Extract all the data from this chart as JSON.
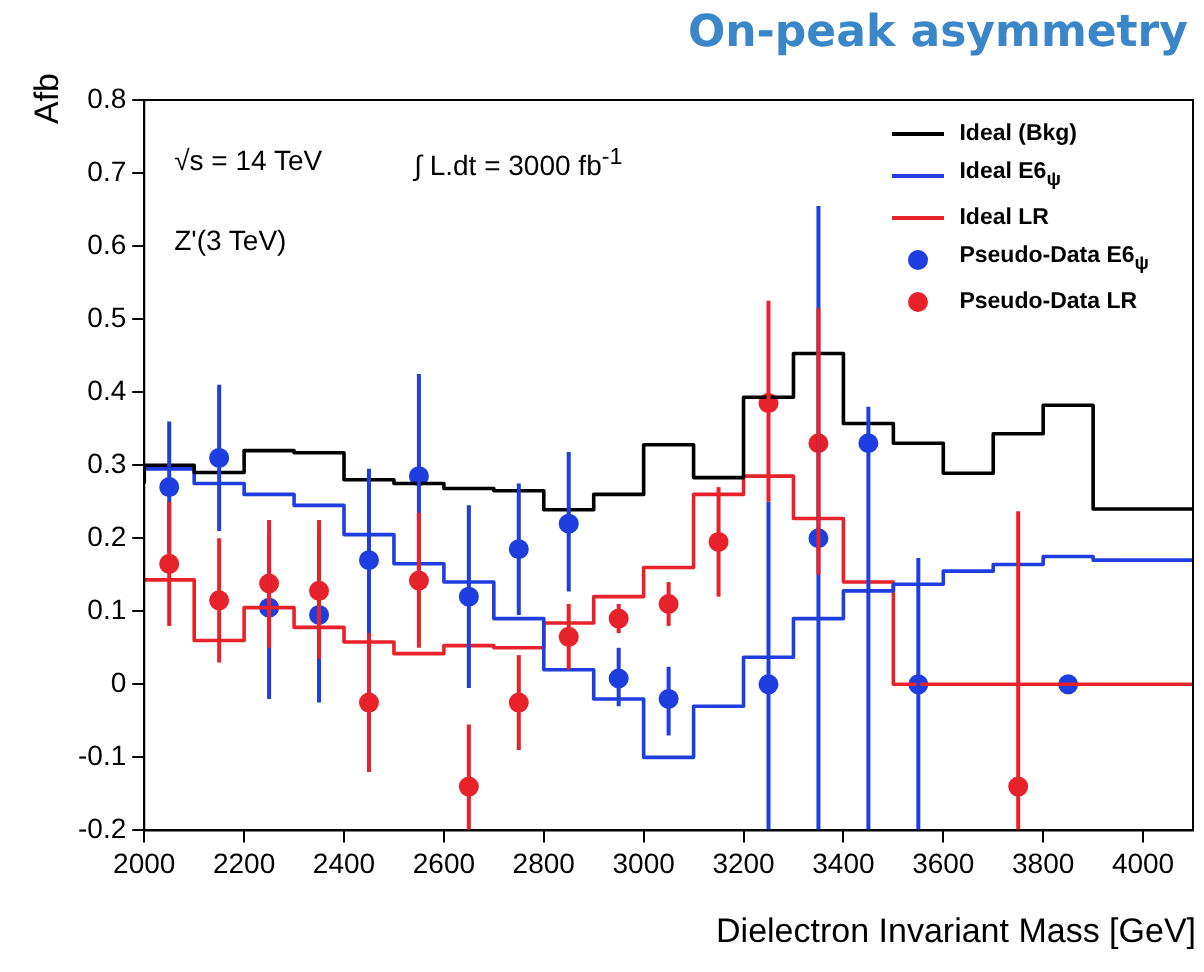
{
  "chart_data": {
    "type": "step",
    "title": "On-peak asymmetry",
    "xlabel": "Dielectron Invariant Mass [GeV]",
    "ylabel": "Afb",
    "annotations": [
      "√s = 14 TeV",
      "∫ L.dt = 3000 fb$^{-1}$",
      "Z'(3 TeV)"
    ],
    "xlim": [
      2000,
      4100
    ],
    "xticks": [
      2000,
      2200,
      2400,
      2600,
      2800,
      3000,
      3200,
      3400,
      3600,
      3800,
      4000
    ],
    "ylim": [
      -0.2,
      0.8
    ],
    "yticks": [
      -0.2,
      -0.1,
      0,
      0.1,
      0.2,
      0.3,
      0.4,
      0.5,
      0.6,
      0.7,
      0.8
    ],
    "grid": false,
    "legend": "top right",
    "series": [
      {
        "name": "Ideal (Bkg)",
        "color": "#000000",
        "x": [
          2000,
          2100,
          2200,
          2300,
          2400,
          2500,
          2600,
          2700,
          2800,
          2900,
          3000,
          3100,
          3200,
          3300,
          3400,
          3500,
          3600,
          3700,
          3800,
          3900,
          4000,
          4100
        ],
        "values": [
          0.275,
          0.3,
          0.29,
          0.32,
          0.317,
          0.28,
          0.275,
          0.268,
          0.265,
          0.239,
          0.26,
          0.328,
          0.283,
          0.393,
          0.453,
          0.357,
          0.33,
          0.289,
          0.343,
          0.382,
          0.24,
          0.24
        ]
      },
      {
        "name": "Ideal E6$_{ψ}$",
        "color": "#1f3ee0",
        "x": [
          2000,
          2100,
          2200,
          2300,
          2400,
          2500,
          2600,
          2700,
          2800,
          2900,
          3000,
          3100,
          3200,
          3300,
          3400,
          3500,
          3600,
          3700,
          3800,
          3900,
          4000,
          4100
        ],
        "values": [
          0.295,
          0.295,
          0.275,
          0.26,
          0.245,
          0.205,
          0.165,
          0.14,
          0.09,
          0.02,
          -0.02,
          -0.1,
          -0.03,
          0.037,
          0.09,
          0.128,
          0.137,
          0.155,
          0.164,
          0.175,
          0.17,
          0.17
        ]
      },
      {
        "name": "Ideal LR",
        "color": "#e8222a",
        "x": [
          2000,
          2100,
          2200,
          2300,
          2400,
          2500,
          2600,
          2700,
          2800,
          2900,
          3000,
          3100,
          3200,
          3300,
          3400,
          3500,
          3600,
          3700,
          3800,
          3900,
          4000,
          4100
        ],
        "values": [
          0.145,
          0.143,
          0.06,
          0.105,
          0.078,
          0.058,
          0.042,
          0.053,
          0.05,
          0.084,
          0.12,
          0.16,
          0.26,
          0.285,
          0.227,
          0.14,
          0,
          0,
          0,
          0,
          0,
          0
        ]
      },
      {
        "name": "Pseudo-Data E6$_{ψ}$",
        "type": "scatter",
        "marker": "circle",
        "color": "#1f3ee0",
        "x": [
          2050,
          2150,
          2250,
          2350,
          2450,
          2550,
          2650,
          2750,
          2850,
          2950,
          3050,
          3250,
          3350,
          3450,
          3550,
          3850
        ],
        "values": [
          0.27,
          0.31,
          0.105,
          0.095,
          0.17,
          0.285,
          0.12,
          0.185,
          0.22,
          0.008,
          -0.02,
          0,
          0.2,
          0.33,
          0,
          0
        ],
        "errors": [
          [
            0.18,
            0.36
          ],
          [
            0.21,
            0.41
          ],
          [
            -0.02,
            0.205
          ],
          [
            -0.025,
            0.21
          ],
          [
            0.05,
            0.295
          ],
          [
            0.145,
            0.425
          ],
          [
            -0.005,
            0.245
          ],
          [
            0.095,
            0.275
          ],
          [
            0.127,
            0.318
          ],
          [
            -0.03,
            0.05
          ],
          [
            -0.07,
            0.024
          ],
          [
            -0.2,
            0.25
          ],
          [
            -0.2,
            0.655
          ],
          [
            -0.2,
            0.38
          ],
          [
            -0.2,
            0.173
          ],
          null
        ]
      },
      {
        "name": "Pseudo-Data LR",
        "type": "scatter",
        "marker": "circle",
        "color": "#e8222a",
        "x": [
          2050,
          2150,
          2250,
          2350,
          2450,
          2550,
          2650,
          2750,
          2850,
          2950,
          3050,
          3150,
          3250,
          3350,
          3750
        ],
        "values": [
          0.165,
          0.115,
          0.138,
          0.128,
          -0.025,
          0.142,
          -0.14,
          -0.025,
          0.065,
          0.09,
          0.11,
          0.195,
          0.385,
          0.33,
          -0.14
        ],
        "errors": [
          [
            0.08,
            0.25
          ],
          [
            0.03,
            0.2
          ],
          [
            0.05,
            0.225
          ],
          [
            0.035,
            0.225
          ],
          [
            -0.12,
            0.07
          ],
          [
            0.05,
            0.235
          ],
          [
            -0.2,
            -0.055
          ],
          [
            -0.09,
            0.04
          ],
          [
            0.02,
            0.11
          ],
          [
            0.07,
            0.11
          ],
          [
            0.08,
            0.14
          ],
          [
            0.12,
            0.27
          ],
          [
            0.25,
            0.525
          ],
          [
            0.15,
            0.515
          ],
          [
            -0.2,
            0.237
          ]
        ]
      }
    ]
  }
}
